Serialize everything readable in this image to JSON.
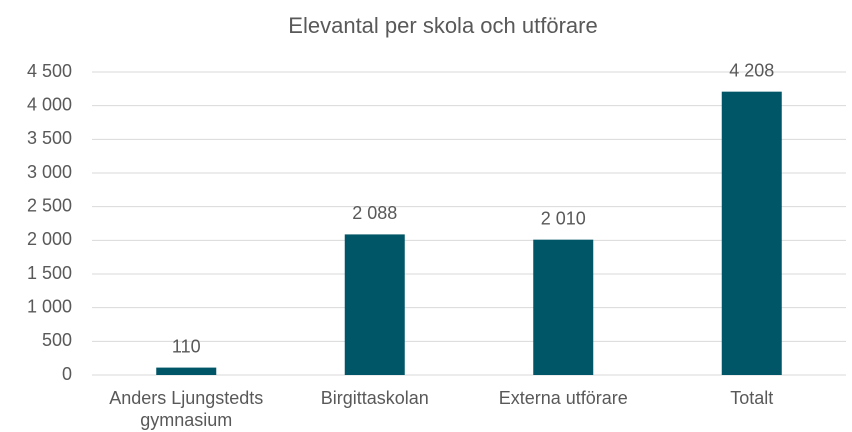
{
  "chart_data": {
    "type": "bar",
    "title": "Elevantal per skola och utförare",
    "categories": [
      "Anders Ljungstedts gymnasium",
      "Birgittaskolan",
      "Externa utförare",
      "Totalt"
    ],
    "values": [
      110,
      2088,
      2010,
      4208
    ],
    "value_labels": [
      "110",
      "2 088",
      "2 010",
      "4 208"
    ],
    "color": "#005566",
    "ylim": [
      0,
      4500
    ],
    "yticks": [
      0,
      500,
      {
        "value": 1000,
        "label": "1 000"
      },
      {
        "value": 1500,
        "label": "1 500"
      },
      {
        "value": 2000,
        "label": "2 000"
      },
      {
        "value": 2500,
        "label": "2 500"
      },
      {
        "value": 3000,
        "label": "3 000"
      },
      {
        "value": 3500,
        "label": "3 500"
      },
      {
        "value": 4000,
        "label": "4 000"
      },
      {
        "value": 4500,
        "label": "4 500"
      }
    ],
    "grid": true
  }
}
